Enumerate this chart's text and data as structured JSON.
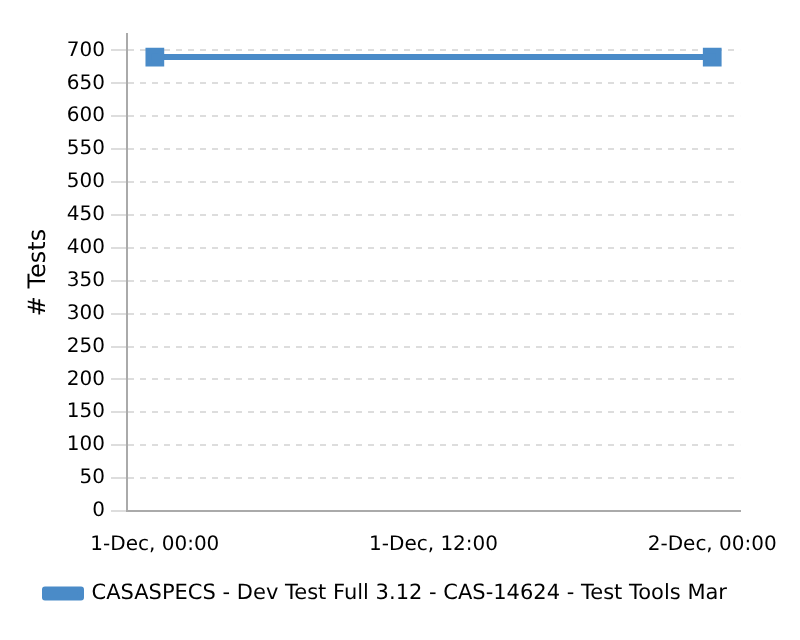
{
  "chart_data": {
    "type": "line",
    "ylabel": "# Tests",
    "x": [
      "--12-01T00:00",
      "--12-02T00:00"
    ],
    "series": [
      {
        "name": "CASASPECS - Dev Test Full 3.12 - CAS-14624 - Test Tools Mar",
        "color": "#4a8bc8",
        "values": [
          690,
          690
        ]
      }
    ],
    "xlim": [
      "--11-30T22:48",
      "--12-02T01:12"
    ],
    "xticks": [
      {
        "value": "--12-01T00:00",
        "label": "1-Dec, 00:00"
      },
      {
        "value": "--12-01T12:00",
        "label": "1-Dec, 12:00"
      },
      {
        "value": "--12-02T00:00",
        "label": "2-Dec, 00:00"
      }
    ],
    "ylim": [
      0,
      725
    ],
    "yticks": [
      0,
      50,
      100,
      150,
      200,
      250,
      300,
      350,
      400,
      450,
      500,
      550,
      600,
      650,
      700
    ],
    "grid": "y",
    "legend": "bottom",
    "marker": "square",
    "line_style": "solid"
  }
}
